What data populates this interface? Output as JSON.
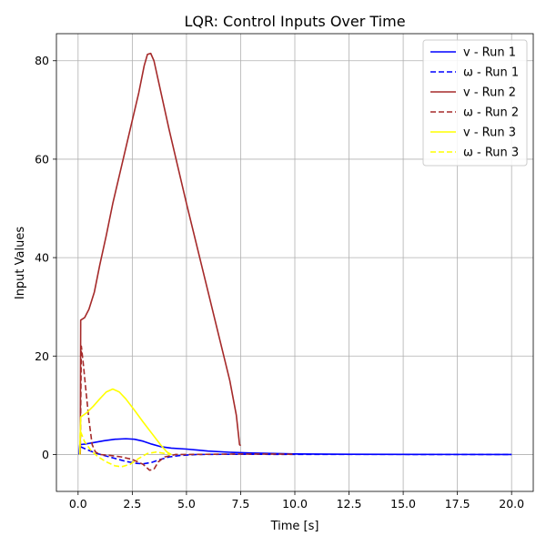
{
  "chart_data": {
    "type": "line",
    "title": "LQR: Control Inputs Over Time",
    "xlabel": "Time [s]",
    "ylabel": "Input Values",
    "xlim": [
      -1.0,
      21.0
    ],
    "ylim": [
      -7.5,
      85.5
    ],
    "xticks": [
      0.0,
      2.5,
      5.0,
      7.5,
      10.0,
      12.5,
      15.0,
      17.5,
      20.0
    ],
    "xtick_labels": [
      "0.0",
      "2.5",
      "5.0",
      "7.5",
      "10.0",
      "12.5",
      "15.0",
      "17.5",
      "20.0"
    ],
    "yticks": [
      0,
      20,
      40,
      60,
      80
    ],
    "ytick_labels": [
      "0",
      "20",
      "40",
      "60",
      "80"
    ],
    "grid": true,
    "legend_position": "top-right",
    "series": [
      {
        "name": "v - Run 1",
        "color": "#0000ff",
        "dash": "solid",
        "points": [
          [
            0.05,
            0
          ],
          [
            0.08,
            2.0
          ],
          [
            0.3,
            2.1
          ],
          [
            0.7,
            2.4
          ],
          [
            1.2,
            2.8
          ],
          [
            1.7,
            3.1
          ],
          [
            2.2,
            3.2
          ],
          [
            2.6,
            3.1
          ],
          [
            3.0,
            2.7
          ],
          [
            3.4,
            2.1
          ],
          [
            3.8,
            1.6
          ],
          [
            4.3,
            1.3
          ],
          [
            5.0,
            1.1
          ],
          [
            5.5,
            0.9
          ],
          [
            6.0,
            0.7
          ],
          [
            7.0,
            0.45
          ],
          [
            8.0,
            0.3
          ],
          [
            10.0,
            0.12
          ],
          [
            12.5,
            0.05
          ],
          [
            15.0,
            0.02
          ],
          [
            17.5,
            0.01
          ],
          [
            20.0,
            0.0
          ]
        ]
      },
      {
        "name": "ω - Run 1",
        "color": "#0000ff",
        "dash": "dashed",
        "points": [
          [
            0.05,
            0
          ],
          [
            0.1,
            1.6
          ],
          [
            0.4,
            1.0
          ],
          [
            0.8,
            0.3
          ],
          [
            1.2,
            -0.2
          ],
          [
            1.7,
            -0.8
          ],
          [
            2.2,
            -1.4
          ],
          [
            2.7,
            -1.8
          ],
          [
            3.0,
            -1.9
          ],
          [
            3.4,
            -1.6
          ],
          [
            3.8,
            -1.0
          ],
          [
            4.2,
            -0.5
          ],
          [
            4.7,
            -0.2
          ],
          [
            5.5,
            0.0
          ],
          [
            7.0,
            0.05
          ],
          [
            10.0,
            0.02
          ],
          [
            20.0,
            0.0
          ]
        ]
      },
      {
        "name": "v - Run 2",
        "color": "#a52a2a",
        "dash": "solid",
        "points": [
          [
            0.1,
            0
          ],
          [
            0.12,
            27.3
          ],
          [
            0.3,
            27.8
          ],
          [
            0.5,
            29.5
          ],
          [
            0.75,
            33.0
          ],
          [
            1.0,
            38.5
          ],
          [
            1.3,
            44.5
          ],
          [
            1.6,
            51.0
          ],
          [
            2.0,
            58.5
          ],
          [
            2.4,
            66.0
          ],
          [
            2.8,
            73.5
          ],
          [
            3.05,
            79.0
          ],
          [
            3.2,
            81.3
          ],
          [
            3.35,
            81.5
          ],
          [
            3.5,
            80.0
          ],
          [
            3.8,
            74.0
          ],
          [
            4.2,
            66.0
          ],
          [
            4.6,
            58.5
          ],
          [
            5.0,
            51.0
          ],
          [
            5.5,
            42.0
          ],
          [
            6.0,
            33.0
          ],
          [
            6.5,
            24.0
          ],
          [
            7.0,
            15.0
          ],
          [
            7.3,
            8.0
          ],
          [
            7.45,
            2.0
          ],
          [
            7.5,
            1.8
          ]
        ]
      },
      {
        "name": "ω - Run 2",
        "color": "#a52a2a",
        "dash": "dashed",
        "points": [
          [
            0.1,
            0
          ],
          [
            0.15,
            22.0
          ],
          [
            0.25,
            18.0
          ],
          [
            0.35,
            13.5
          ],
          [
            0.5,
            7.0
          ],
          [
            0.65,
            2.0
          ],
          [
            0.8,
            0.5
          ],
          [
            1.0,
            0.0
          ],
          [
            1.5,
            -0.2
          ],
          [
            2.0,
            -0.5
          ],
          [
            2.5,
            -1.0
          ],
          [
            3.0,
            -2.0
          ],
          [
            3.3,
            -3.2
          ],
          [
            3.5,
            -3.0
          ],
          [
            3.7,
            -1.5
          ],
          [
            4.0,
            -0.5
          ],
          [
            4.5,
            0.0
          ],
          [
            5.0,
            0.0
          ],
          [
            7.5,
            0.1
          ],
          [
            9.0,
            0.1
          ],
          [
            10.0,
            0.05
          ]
        ]
      },
      {
        "name": "v - Run 3",
        "color": "#ffff00",
        "dash": "solid",
        "points": [
          [
            0.08,
            0
          ],
          [
            0.1,
            4.0
          ],
          [
            0.12,
            7.6
          ],
          [
            0.4,
            8.5
          ],
          [
            0.7,
            9.8
          ],
          [
            1.0,
            11.3
          ],
          [
            1.3,
            12.7
          ],
          [
            1.6,
            13.3
          ],
          [
            1.9,
            12.7
          ],
          [
            2.2,
            11.3
          ],
          [
            2.6,
            9.0
          ],
          [
            3.0,
            6.6
          ],
          [
            3.4,
            4.3
          ],
          [
            3.8,
            2.0
          ],
          [
            4.1,
            0.5
          ],
          [
            4.3,
            0.0
          ]
        ]
      },
      {
        "name": "ω - Run 3",
        "color": "#ffff00",
        "dash": "dashed",
        "points": [
          [
            0.08,
            0
          ],
          [
            0.1,
            4.8
          ],
          [
            0.3,
            2.6
          ],
          [
            0.6,
            0.8
          ],
          [
            0.9,
            -0.4
          ],
          [
            1.3,
            -1.5
          ],
          [
            1.7,
            -2.3
          ],
          [
            2.0,
            -2.5
          ],
          [
            2.4,
            -2.0
          ],
          [
            2.8,
            -0.8
          ],
          [
            3.2,
            0.2
          ],
          [
            3.6,
            0.5
          ],
          [
            4.0,
            0.2
          ],
          [
            4.3,
            0.0
          ]
        ]
      }
    ]
  }
}
